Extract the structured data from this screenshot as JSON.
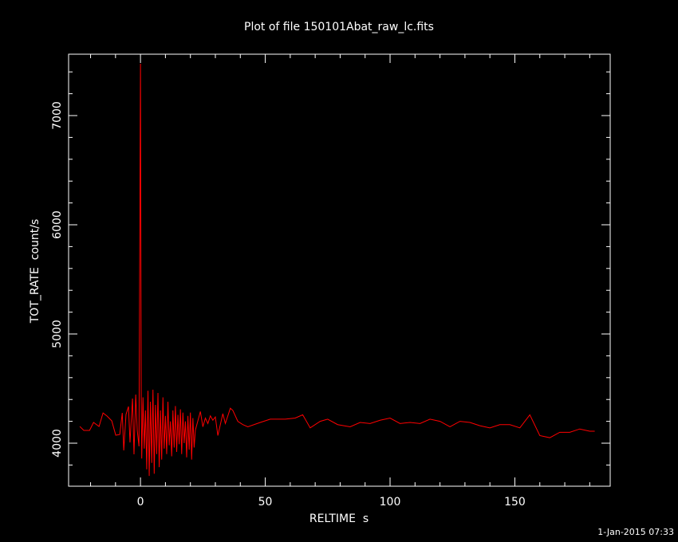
{
  "chart_data": {
    "type": "line",
    "title": "Plot of file 150101Abat_raw_lc.fits",
    "x_label": "RELTIME  s",
    "y_label": "TOT_RATE  count/s",
    "footer": "1-Jan-2015 07:33",
    "xlim": [
      -28.8,
      188.2
    ],
    "ylim": [
      3606,
      7562
    ],
    "xticks": [
      0,
      50,
      100,
      150
    ],
    "yticks": [
      4000,
      5000,
      6000,
      7000
    ],
    "xminor_ticks": [
      -20,
      -10,
      10,
      20,
      30,
      40,
      60,
      70,
      80,
      90,
      110,
      120,
      130,
      140,
      160,
      170,
      180
    ],
    "yminor_ticks": [
      3800,
      4200,
      4400,
      4600,
      4800,
      5200,
      5400,
      5600,
      5800,
      6200,
      6400,
      6600,
      6800,
      7200,
      7400
    ],
    "x": [
      -24.3,
      -22.7,
      -20.4,
      -18.8,
      -16.6,
      -15,
      -13.4,
      -11.5,
      -9.9,
      -8.3,
      -7.3,
      -6.7,
      -5.8,
      -4.8,
      -4.2,
      -3.2,
      -2.6,
      -1.9,
      -1.3,
      -0.6,
      0,
      0.3,
      0.5,
      1,
      1.5,
      2,
      2.5,
      3,
      3.5,
      4,
      4.5,
      5,
      5.5,
      6,
      6.5,
      7,
      7.5,
      8,
      8.5,
      9,
      9.5,
      10,
      10.5,
      11,
      11.5,
      12,
      12.5,
      13,
      13.5,
      14,
      14.5,
      15,
      15.5,
      16,
      16.5,
      17,
      17.5,
      18,
      18.5,
      19,
      19.5,
      20,
      20.5,
      21,
      21.5,
      22,
      24,
      25,
      26,
      27,
      28,
      29,
      30,
      31,
      33,
      34,
      36,
      37,
      39,
      41,
      43,
      48,
      52,
      58,
      62,
      65,
      68,
      72,
      75,
      79,
      84,
      88,
      92,
      96,
      100,
      104,
      108,
      112,
      116,
      120,
      124,
      128,
      132,
      136,
      140,
      144,
      148,
      152,
      156,
      160,
      164,
      168,
      172,
      176,
      180,
      182
    ],
    "series": [
      {
        "color": "#ff0000",
        "values": [
          4153,
          4117,
          4117,
          4190,
          4153,
          4277,
          4248,
          4204,
          4073,
          4080,
          4277,
          3934,
          4263,
          4336,
          4007,
          4409,
          3898,
          4445,
          4117,
          3971,
          7474,
          4409,
          3860,
          4420,
          3950,
          4300,
          3760,
          4480,
          3700,
          4380,
          3820,
          4490,
          3720,
          4350,
          3900,
          4460,
          3780,
          4300,
          3850,
          4420,
          3950,
          4250,
          3900,
          4380,
          3980,
          4200,
          3880,
          4300,
          3960,
          4340,
          3920,
          4260,
          3990,
          4310,
          3900,
          4280,
          4000,
          4200,
          3870,
          4250,
          3940,
          4280,
          3850,
          4230,
          3960,
          4120,
          4290,
          4150,
          4230,
          4180,
          4250,
          4210,
          4240,
          4070,
          4270,
          4180,
          4320,
          4300,
          4200,
          4170,
          4150,
          4190,
          4220,
          4220,
          4230,
          4260,
          4140,
          4200,
          4220,
          4170,
          4150,
          4190,
          4180,
          4210,
          4230,
          4180,
          4190,
          4180,
          4220,
          4200,
          4150,
          4200,
          4190,
          4160,
          4140,
          4170,
          4170,
          4140,
          4260,
          4070,
          4050,
          4100,
          4100,
          4130,
          4110,
          4110
        ]
      }
    ]
  }
}
